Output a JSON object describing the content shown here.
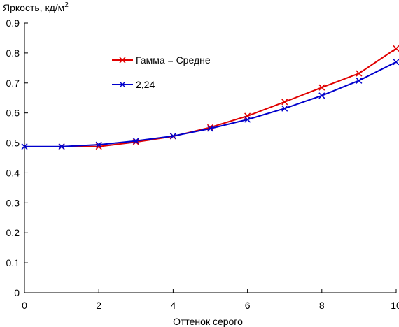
{
  "chart_data": {
    "type": "line",
    "title": "",
    "ylabel": "Яркость, кд/м",
    "ylabel_sup": "2",
    "xlabel": "Оттенок серого",
    "xlim": [
      0,
      10
    ],
    "ylim": [
      0,
      0.9
    ],
    "x_ticks": [
      0,
      2,
      4,
      6,
      8,
      10
    ],
    "x_tick_labels": [
      "0",
      "2",
      "4",
      "6",
      "8",
      "10"
    ],
    "y_ticks": [
      0,
      0.1,
      0.2,
      0.3,
      0.4,
      0.5,
      0.6,
      0.7,
      0.8,
      0.9
    ],
    "y_tick_labels": [
      "0",
      "0.1",
      "0.2",
      "0.3",
      "0.4",
      "0.5",
      "0.6",
      "0.7",
      "0.8",
      "0.9"
    ],
    "grid": false,
    "legend_position": "top-center",
    "series": [
      {
        "name": "Гамма = Средне",
        "color": "#e00000",
        "x": [
          1,
          2,
          3,
          4,
          5,
          6,
          7,
          8,
          9,
          10
        ],
        "y": [
          0.488,
          0.488,
          0.503,
          0.522,
          0.552,
          0.59,
          0.637,
          0.685,
          0.732,
          0.815
        ]
      },
      {
        "name": "2,24",
        "color": "#0000cc",
        "x": [
          0,
          1,
          2,
          3,
          4,
          5,
          6,
          7,
          8,
          9,
          10
        ],
        "y": [
          0.488,
          0.488,
          0.494,
          0.507,
          0.523,
          0.548,
          0.578,
          0.615,
          0.658,
          0.708,
          0.77
        ]
      }
    ]
  }
}
